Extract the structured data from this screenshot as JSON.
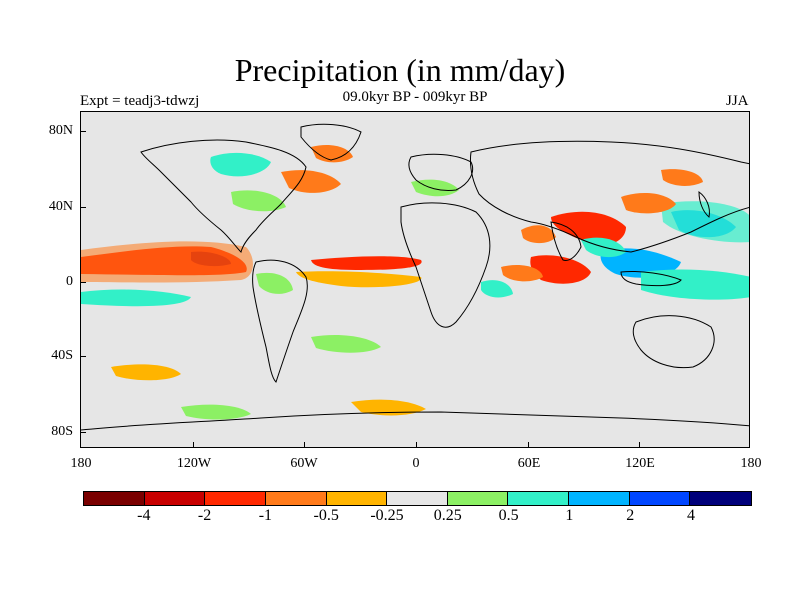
{
  "title": "Precipitation (in mm/day)",
  "subtitle": "09.0kyr BP - 009kyr BP",
  "experiment": "Expt = teadj3-tdwzj",
  "season": "JJA",
  "lat_labels": [
    "80N",
    "40N",
    "0",
    "40S",
    "80S"
  ],
  "lon_labels": [
    "180",
    "120W",
    "60W",
    "0",
    "60E",
    "120E",
    "180"
  ],
  "colorbar": {
    "colors": [
      "#7a0000",
      "#c80000",
      "#ff2800",
      "#ff7a1a",
      "#ffb400",
      "#e6e6e6",
      "#8cf064",
      "#32f0c8",
      "#00b4ff",
      "#0046ff",
      "#00007a"
    ],
    "labels": [
      "-4",
      "-2",
      "-1",
      "-0.5",
      "-0.25",
      "0.25",
      "0.5",
      "1",
      "2",
      "4"
    ]
  },
  "map_colors": {
    "background": "#e6e6e6",
    "coast": "#000000"
  }
}
